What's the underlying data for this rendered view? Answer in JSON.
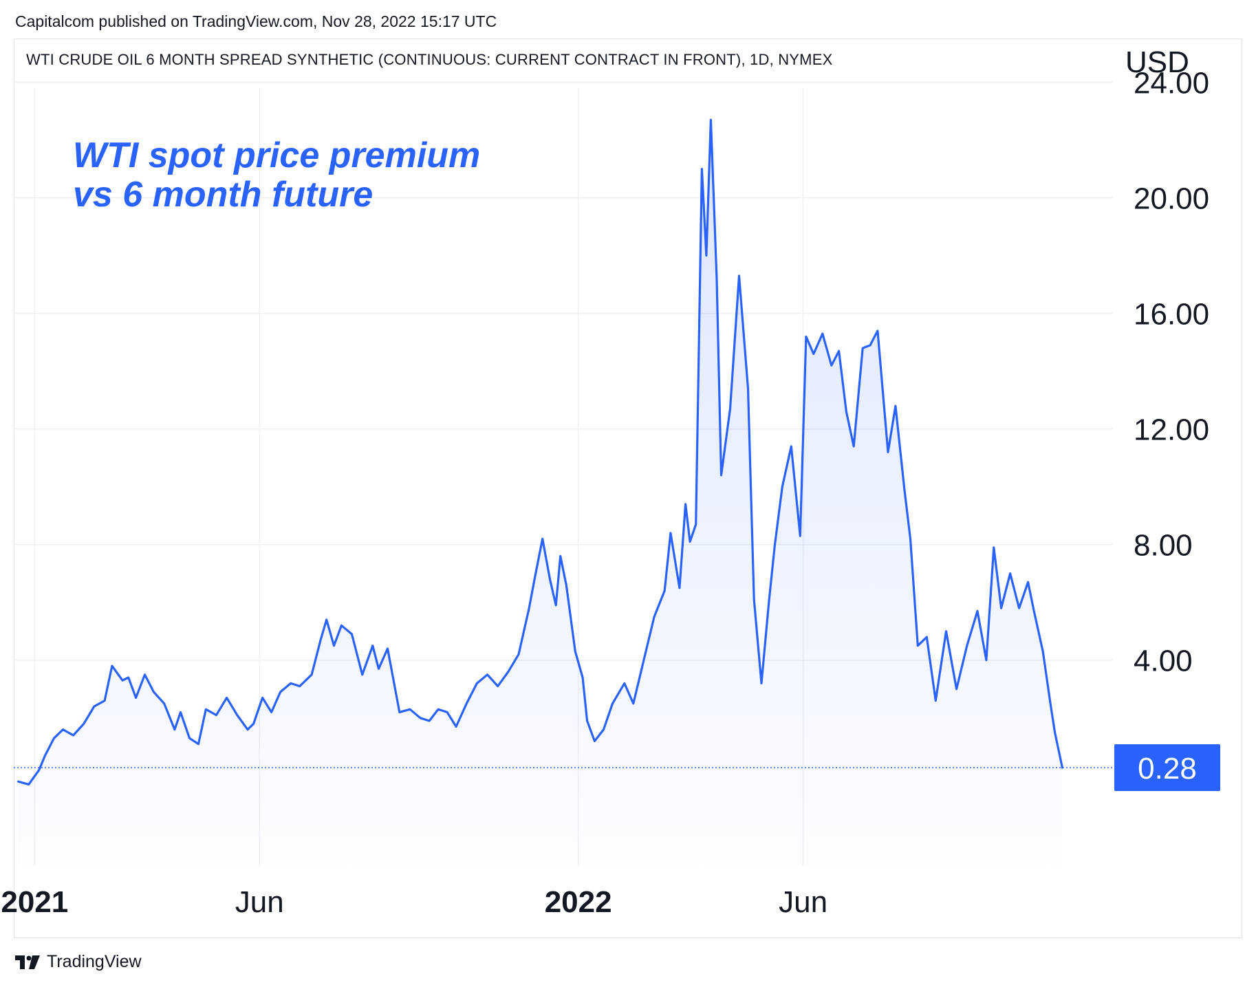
{
  "header": {
    "publisher": "Capitalcom published on TradingView.com, Nov 28, 2022 15:17 UTC",
    "title": "WTI CRUDE OIL 6 MONTH SPREAD SYNTHETIC (CONTINUOUS: CURRENT CONTRACT IN FRONT), 1D, NYMEX",
    "currency": "USD"
  },
  "annotation": {
    "line1": "WTI spot price premium",
    "line2": "vs 6 month future"
  },
  "footer": {
    "brand": "TradingView"
  },
  "colors": {
    "line": "#2962ff",
    "badge": "#2962ff",
    "grid": "#eef0f4",
    "text": "#131722"
  },
  "chart_data": {
    "type": "area",
    "title": "WTI CRUDE OIL 6 MONTH SPREAD SYNTHETIC (CONTINUOUS: CURRENT CONTRACT IN FRONT), 1D, NYMEX",
    "xlabel": "",
    "ylabel": "USD",
    "y_ticks": [
      "4.00",
      "8.00",
      "12.00",
      "16.00",
      "20.00",
      "24.00"
    ],
    "x_ticks": [
      {
        "label": "2021",
        "date": "2021-01-01",
        "bold": true
      },
      {
        "label": "Jun",
        "date": "2021-06-01",
        "bold": false
      },
      {
        "label": "2022",
        "date": "2022-01-01",
        "bold": true
      },
      {
        "label": "Jun",
        "date": "2022-06-01",
        "bold": false
      }
    ],
    "ylim": [
      -3.1,
      23.8
    ],
    "xlim": [
      "2020-12-18",
      "2022-12-26"
    ],
    "grid": true,
    "last_value": 0.28,
    "last_value_label": "0.28",
    "series": [
      {
        "values": [
          [
            "2020-12-21",
            -0.2
          ],
          [
            "2020-12-28",
            -0.3
          ],
          [
            "2021-01-04",
            0.2
          ],
          [
            "2021-01-08",
            0.7
          ],
          [
            "2021-01-14",
            1.3
          ],
          [
            "2021-01-20",
            1.6
          ],
          [
            "2021-01-27",
            1.4
          ],
          [
            "2021-02-03",
            1.8
          ],
          [
            "2021-02-10",
            2.4
          ],
          [
            "2021-02-17",
            2.6
          ],
          [
            "2021-02-22",
            3.8
          ],
          [
            "2021-03-01",
            3.3
          ],
          [
            "2021-03-05",
            3.4
          ],
          [
            "2021-03-10",
            2.7
          ],
          [
            "2021-03-16",
            3.5
          ],
          [
            "2021-03-22",
            2.9
          ],
          [
            "2021-03-29",
            2.5
          ],
          [
            "2021-04-05",
            1.6
          ],
          [
            "2021-04-09",
            2.2
          ],
          [
            "2021-04-15",
            1.3
          ],
          [
            "2021-04-21",
            1.1
          ],
          [
            "2021-04-26",
            2.3
          ],
          [
            "2021-05-03",
            2.1
          ],
          [
            "2021-05-10",
            2.7
          ],
          [
            "2021-05-17",
            2.1
          ],
          [
            "2021-05-24",
            1.6
          ],
          [
            "2021-05-28",
            1.8
          ],
          [
            "2021-06-03",
            2.7
          ],
          [
            "2021-06-09",
            2.2
          ],
          [
            "2021-06-15",
            2.9
          ],
          [
            "2021-06-22",
            3.2
          ],
          [
            "2021-06-28",
            3.1
          ],
          [
            "2021-07-06",
            3.5
          ],
          [
            "2021-07-12",
            4.7
          ],
          [
            "2021-07-16",
            5.4
          ],
          [
            "2021-07-21",
            4.5
          ],
          [
            "2021-07-26",
            5.2
          ],
          [
            "2021-08-02",
            4.9
          ],
          [
            "2021-08-09",
            3.5
          ],
          [
            "2021-08-16",
            4.5
          ],
          [
            "2021-08-20",
            3.7
          ],
          [
            "2021-08-26",
            4.4
          ],
          [
            "2021-09-03",
            2.2
          ],
          [
            "2021-09-10",
            2.3
          ],
          [
            "2021-09-17",
            2.0
          ],
          [
            "2021-09-23",
            1.9
          ],
          [
            "2021-09-29",
            2.3
          ],
          [
            "2021-10-05",
            2.2
          ],
          [
            "2021-10-11",
            1.7
          ],
          [
            "2021-10-18",
            2.5
          ],
          [
            "2021-10-25",
            3.2
          ],
          [
            "2021-11-01",
            3.5
          ],
          [
            "2021-11-08",
            3.1
          ],
          [
            "2021-11-15",
            3.6
          ],
          [
            "2021-11-22",
            4.2
          ],
          [
            "2021-11-29",
            5.8
          ],
          [
            "2021-12-03",
            6.9
          ],
          [
            "2021-12-08",
            8.2
          ],
          [
            "2021-12-13",
            6.8
          ],
          [
            "2021-12-17",
            5.9
          ],
          [
            "2021-12-20",
            7.6
          ],
          [
            "2021-12-24",
            6.6
          ],
          [
            "2021-12-30",
            4.3
          ],
          [
            "2022-01-04",
            3.4
          ],
          [
            "2022-01-07",
            1.9
          ],
          [
            "2022-01-12",
            1.2
          ],
          [
            "2022-01-18",
            1.6
          ],
          [
            "2022-01-24",
            2.5
          ],
          [
            "2022-02-01",
            3.2
          ],
          [
            "2022-02-07",
            2.5
          ],
          [
            "2022-02-14",
            4.0
          ],
          [
            "2022-02-21",
            5.5
          ],
          [
            "2022-02-28",
            6.4
          ],
          [
            "2022-03-04",
            8.4
          ],
          [
            "2022-03-10",
            6.5
          ],
          [
            "2022-03-14",
            9.4
          ],
          [
            "2022-03-17",
            8.1
          ],
          [
            "2022-03-21",
            8.7
          ],
          [
            "2022-03-25",
            21.0
          ],
          [
            "2022-03-28",
            18.0
          ],
          [
            "2022-03-31",
            22.7
          ],
          [
            "2022-04-04",
            17.2
          ],
          [
            "2022-04-07",
            10.4
          ],
          [
            "2022-04-13",
            12.7
          ],
          [
            "2022-04-19",
            17.3
          ],
          [
            "2022-04-25",
            13.4
          ],
          [
            "2022-04-29",
            6.1
          ],
          [
            "2022-05-04",
            3.2
          ],
          [
            "2022-05-09",
            6.0
          ],
          [
            "2022-05-13",
            8.0
          ],
          [
            "2022-05-18",
            10.0
          ],
          [
            "2022-05-24",
            11.4
          ],
          [
            "2022-05-30",
            8.3
          ],
          [
            "2022-06-03",
            15.2
          ],
          [
            "2022-06-08",
            14.6
          ],
          [
            "2022-06-14",
            15.3
          ],
          [
            "2022-06-20",
            14.2
          ],
          [
            "2022-06-25",
            14.7
          ],
          [
            "2022-06-30",
            12.6
          ],
          [
            "2022-07-05",
            11.4
          ],
          [
            "2022-07-11",
            14.8
          ],
          [
            "2022-07-16",
            14.9
          ],
          [
            "2022-07-21",
            15.4
          ],
          [
            "2022-07-28",
            11.2
          ],
          [
            "2022-08-02",
            12.8
          ],
          [
            "2022-08-08",
            9.9
          ],
          [
            "2022-08-12",
            8.2
          ],
          [
            "2022-08-17",
            4.5
          ],
          [
            "2022-08-23",
            4.8
          ],
          [
            "2022-08-29",
            2.6
          ],
          [
            "2022-09-05",
            5.0
          ],
          [
            "2022-09-12",
            3.0
          ],
          [
            "2022-09-19",
            4.5
          ],
          [
            "2022-09-26",
            5.7
          ],
          [
            "2022-10-02",
            4.0
          ],
          [
            "2022-10-07",
            7.9
          ],
          [
            "2022-10-12",
            5.8
          ],
          [
            "2022-10-18",
            7.0
          ],
          [
            "2022-10-24",
            5.8
          ],
          [
            "2022-10-30",
            6.7
          ],
          [
            "2022-11-03",
            5.7
          ],
          [
            "2022-11-09",
            4.3
          ],
          [
            "2022-11-14",
            2.5
          ],
          [
            "2022-11-17",
            1.5
          ],
          [
            "2022-11-22",
            0.28
          ]
        ]
      }
    ]
  }
}
